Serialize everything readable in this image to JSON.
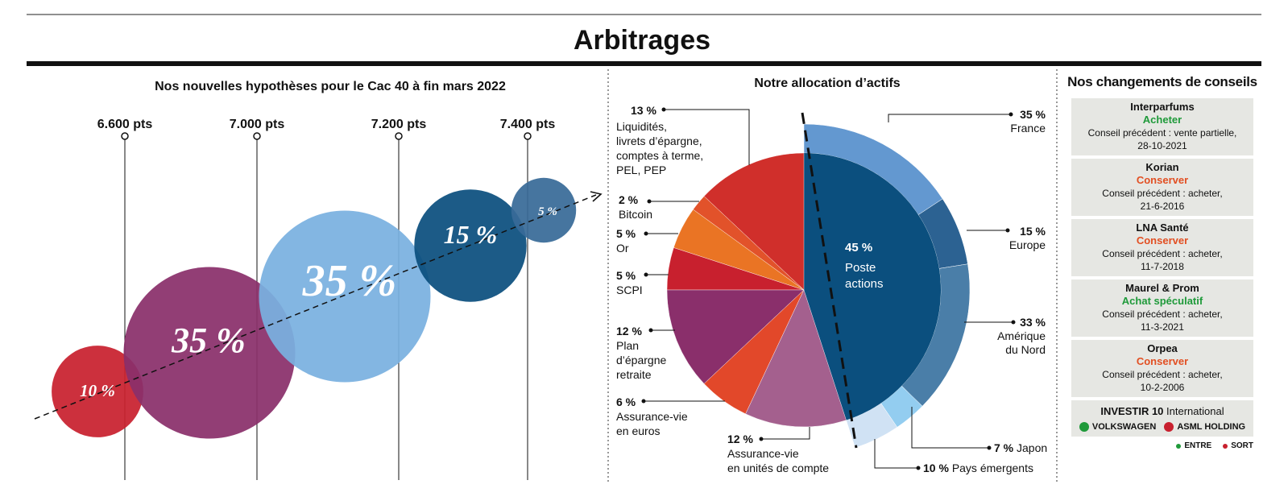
{
  "title": "Arbitrages",
  "colors": {
    "green": "#1f9a3a",
    "orange": "#e24f22",
    "red": "#c8202e",
    "card_bg": "#e6e7e3"
  },
  "chart_data": [
    {
      "type": "scatter",
      "title": "Nos nouvelles hypothèses pour le Cac 40 à fin mars 2022",
      "xlabel": "",
      "ylabel": "",
      "threshold_labels": [
        "6.600 pts",
        "7.000 pts",
        "7.200 pts",
        "7.400 pts"
      ],
      "threshold_values": [
        6600,
        7000,
        7200,
        7400
      ],
      "bubbles": [
        {
          "label": "10 %",
          "value": 10,
          "color": "#c8202e"
        },
        {
          "label": "35 %",
          "value": 35,
          "color": "#8a2f6b"
        },
        {
          "label": "35 %",
          "value": 35,
          "color": "#7ab0e0"
        },
        {
          "label": "15 %",
          "value": 15,
          "color": "#0b4f7e"
        },
        {
          "label": "5 %",
          "value": 5,
          "color": "#386a98"
        }
      ]
    },
    {
      "type": "pie",
      "title": "Notre allocation d’actifs",
      "center_value": "45 %",
      "center_label_line1": "Poste",
      "center_label_line2": "actions",
      "slices": [
        {
          "pct": "13 %",
          "value": 13,
          "label_lines": [
            "Liquidités,",
            "livrets d’épargne,",
            "comptes à terme,",
            "PEL, PEP"
          ],
          "color": "#d02f2b"
        },
        {
          "pct": "2 %",
          "value": 2,
          "label_lines": [
            "Bitcoin"
          ],
          "color": "#e2522a"
        },
        {
          "pct": "5 %",
          "value": 5,
          "label_lines": [
            "Or"
          ],
          "color": "#ea7424"
        },
        {
          "pct": "5 %",
          "value": 5,
          "label_lines": [
            "SCPI"
          ],
          "color": "#c8202e"
        },
        {
          "pct": "12 %",
          "value": 12,
          "label_lines": [
            "Plan",
            "d’épargne",
            "retraite"
          ],
          "color": "#8a2f6b"
        },
        {
          "pct": "6 %",
          "value": 6,
          "label_lines": [
            "Assurance-vie",
            "en euros"
          ],
          "color": "#e2482a"
        },
        {
          "pct": "12 %",
          "value": 12,
          "label_lines": [
            "Assurance-vie",
            "en unités de compte"
          ],
          "color": "#a4608e"
        },
        {
          "pct": "45 %",
          "value": 45,
          "label_lines": [
            "Poste",
            "actions"
          ],
          "color": "#0b4f7e"
        }
      ],
      "breakdown": [
        {
          "pct": "35 %",
          "value": 35,
          "label_lines": [
            "France"
          ],
          "color": "#6398d0"
        },
        {
          "pct": "15 %",
          "value": 15,
          "label_lines": [
            "Europe"
          ],
          "color": "#2c6292"
        },
        {
          "pct": "33 %",
          "value": 33,
          "label_lines": [
            "Amérique",
            "du Nord"
          ],
          "color": "#4a7ea8"
        },
        {
          "pct": "7 %",
          "value": 7,
          "label_lines": [
            "Japon"
          ],
          "color": "#93cdf0"
        },
        {
          "pct": "10 %",
          "value": 10,
          "label_lines": [
            "Pays émergents"
          ],
          "color": "#d0e2f4"
        }
      ]
    }
  ],
  "changes": {
    "title": "Nos changements de conseils",
    "items": [
      {
        "company": "Interparfums",
        "action": "Acheter",
        "action_color": "#1f9a3a",
        "prev_line1": "Conseil précédent : vente partielle,",
        "prev_line2": "28-10-2021"
      },
      {
        "company": "Korian",
        "action": "Conserver",
        "action_color": "#e24f22",
        "prev_line1": "Conseil précédent : acheter,",
        "prev_line2": "21-6-2016"
      },
      {
        "company": "LNA Santé",
        "action": "Conserver",
        "action_color": "#e24f22",
        "prev_line1": "Conseil précédent : acheter,",
        "prev_line2": "11-7-2018"
      },
      {
        "company": "Maurel & Prom",
        "action": "Achat spéculatif",
        "action_color": "#1f9a3a",
        "prev_line1": "Conseil précédent : acheter,",
        "prev_line2": "11-3-2021"
      },
      {
        "company": "Orpea",
        "action": "Conserver",
        "action_color": "#e24f22",
        "prev_line1": "Conseil précédent : acheter,",
        "prev_line2": "10-2-2006"
      }
    ],
    "intl": {
      "brand": "INVESTIR 10",
      "label": "International",
      "entering": "VOLKSWAGEN",
      "leaving": "ASML HOLDING"
    },
    "legend": {
      "entre": "ENTRE",
      "sort": "SORT"
    }
  }
}
